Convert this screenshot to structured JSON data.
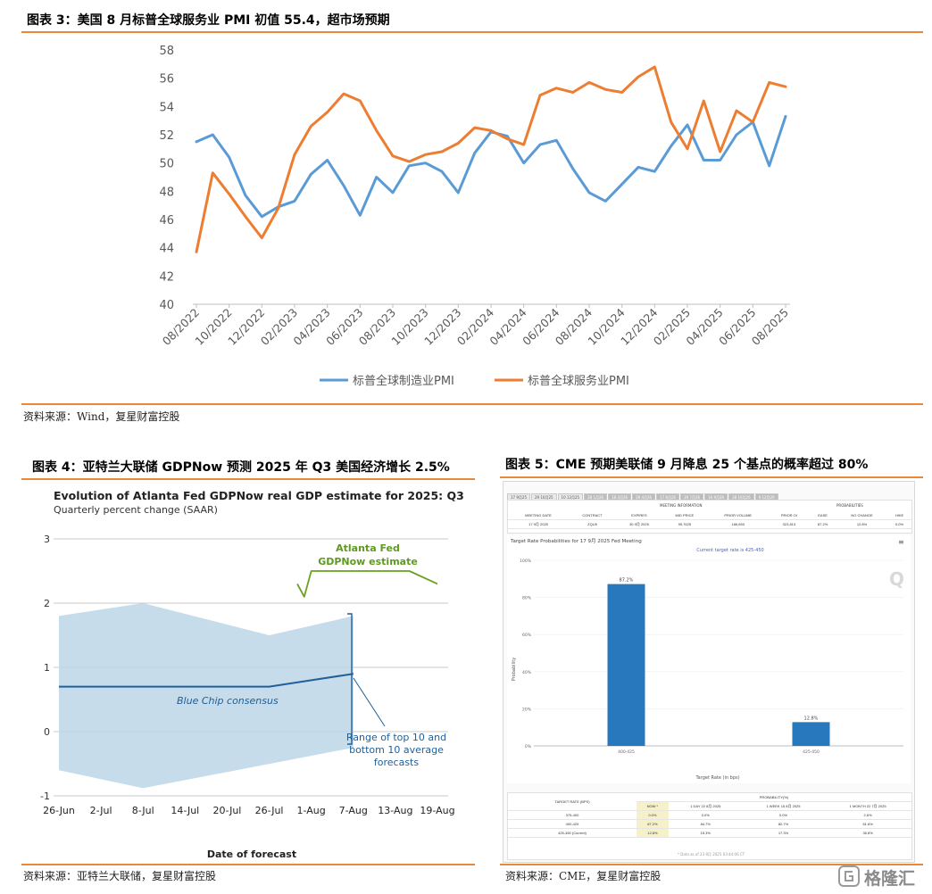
{
  "fig3": {
    "title": "图表 3：美国 8 月标普全球服务业 PMI 初值 55.4，超市场预期",
    "source": "资料来源：Wind，复星财富控股"
  },
  "fig4": {
    "title": "图表 4：亚特兰大联储 GDPNow 预测 2025 年 Q3 美国经济增长 2.5%",
    "source": "资料来源：亚特兰大联储，复星财富控股",
    "chart_title": "Evolution of Atlanta Fed GDPNow real GDP estimate for 2025: Q3",
    "chart_subtitle": "Quarterly percent change (SAAR)",
    "annotation_gdpnow_1": "Atlanta Fed",
    "annotation_gdpnow_2": "GDPNow estimate",
    "annotation_bluechip": "Blue Chip consensus",
    "annotation_range_1": "Range of top 10 and",
    "annotation_range_2": "bottom 10 average",
    "annotation_range_3": "forecasts",
    "xlabel": "Date of forecast"
  },
  "fig5": {
    "title": "图表 5：CME 预期美联储 9 月降息 25 个基点的概率超过 80%",
    "source": "资料来源：CME，复星财富控股",
    "tabs": [
      "17 9月25",
      "29 10月25",
      "10 12月25",
      "28 1月26",
      "18 3月26",
      "29 4月26",
      "17 6月26",
      "29 7月26",
      "16 9月26",
      "28 10月26",
      "9 12月26"
    ],
    "info_headers": {
      "meeting_info": "MEETING INFORMATION",
      "probabilities": "PROBABILITIES"
    },
    "info_cols": [
      "MEETING DATE",
      "CONTRACT",
      "EXPIRES",
      "MID PRICE",
      "PRIOR VOLUME",
      "PRIOR OI",
      "EASE",
      "NO CHANGE",
      "HIKE"
    ],
    "info_row": [
      "17 9月 2025",
      "ZQU5",
      "30 9月 2025",
      "95.7625",
      "166,650",
      "323,813",
      "87.2%",
      "12.8%",
      "0.0%"
    ],
    "plot_title": "Target Rate Probabilities for 17 9月 2025 Fed Meeting",
    "plot_subtitle": "Current target rate is 425-450",
    "ylabel": "Probability",
    "xlabel": "Target Rate (in bps)",
    "table_col1": "TARGET RATE (BPS)",
    "table_prob": "PROBABILITY(%)",
    "table_cols": [
      "NOW *",
      "1 DAY 22 8月 2025",
      "1 WEEK 15 8月 2025",
      "1 MONTH 22 7月 2025"
    ],
    "table_rows": [
      [
        "375-400",
        "0.0%",
        "0.0%",
        "0.0%",
        "2.6%"
      ],
      [
        "400-425",
        "87.2%",
        "84.7%",
        "82.7%",
        "61.6%"
      ],
      [
        "425-450 (Current)",
        "12.8%",
        "15.3%",
        "17.3%",
        "35.8%"
      ]
    ],
    "table_note": "* Data as of 23 8月 2025 03:44:06 CT",
    "watermark": "格隆汇"
  },
  "chart_data": [
    {
      "type": "line",
      "x": [
        "08/2022",
        "09/2022",
        "10/2022",
        "11/2022",
        "12/2022",
        "01/2023",
        "02/2023",
        "03/2023",
        "04/2023",
        "05/2023",
        "06/2023",
        "07/2023",
        "08/2023",
        "09/2023",
        "10/2023",
        "11/2023",
        "12/2023",
        "01/2024",
        "02/2024",
        "03/2024",
        "04/2024",
        "05/2024",
        "06/2024",
        "07/2024",
        "08/2024",
        "09/2024",
        "10/2024",
        "11/2024",
        "12/2024",
        "01/2025",
        "02/2025",
        "03/2025",
        "04/2025",
        "05/2025",
        "06/2025",
        "07/2025",
        "08/2025"
      ],
      "xticks": [
        "08/2022",
        "10/2022",
        "12/2022",
        "02/2023",
        "04/2023",
        "06/2023",
        "08/2023",
        "10/2023",
        "12/2023",
        "02/2024",
        "04/2024",
        "06/2024",
        "08/2024",
        "10/2024",
        "12/2024",
        "02/2025",
        "04/2025",
        "06/2025",
        "08/2025"
      ],
      "series": [
        {
          "name": "标普全球制造业PMI",
          "color": "#5b9bd5",
          "values": [
            51.5,
            52.0,
            50.4,
            47.7,
            46.2,
            46.9,
            47.3,
            49.2,
            50.2,
            48.4,
            46.3,
            49.0,
            47.9,
            49.8,
            50.0,
            49.4,
            47.9,
            50.7,
            52.2,
            51.9,
            50.0,
            51.3,
            51.6,
            49.6,
            47.9,
            47.3,
            48.5,
            49.7,
            49.4,
            51.2,
            52.7,
            50.2,
            50.2,
            52.0,
            52.9,
            49.8,
            53.3
          ]
        },
        {
          "name": "标普全球服务业PMI",
          "color": "#ed7d31",
          "values": [
            43.7,
            49.3,
            47.8,
            46.2,
            44.7,
            46.8,
            50.6,
            52.6,
            53.6,
            54.9,
            54.4,
            52.3,
            50.5,
            50.1,
            50.6,
            50.8,
            51.4,
            52.5,
            52.3,
            51.7,
            51.3,
            54.8,
            55.3,
            55.0,
            55.7,
            55.2,
            55.0,
            56.1,
            56.8,
            52.9,
            51.0,
            54.4,
            50.8,
            53.7,
            52.9,
            55.7,
            55.4
          ]
        }
      ],
      "ylim": [
        40,
        58
      ],
      "yticks": [
        40,
        42,
        44,
        46,
        48,
        50,
        52,
        54,
        56,
        58
      ],
      "grid": false,
      "legend": "bottom"
    },
    {
      "type": "line",
      "title": "Evolution of Atlanta Fed GDPNow real GDP estimate for 2025: Q3",
      "subtitle": "Quarterly percent change (SAAR)",
      "xlabel": "Date of forecast",
      "ylabel": "",
      "xticks": [
        "26-Jun",
        "2-Jul",
        "8-Jul",
        "14-Jul",
        "20-Jul",
        "26-Jul",
        "1-Aug",
        "7-Aug",
        "13-Aug",
        "19-Aug"
      ],
      "ylim": [
        -1,
        3
      ],
      "yticks": [
        -1,
        0,
        1,
        2,
        3
      ],
      "grid": true,
      "series": [
        {
          "name": "Blue Chip consensus",
          "color": "#1f5f9a",
          "points": [
            [
              "26-Jun",
              0.7
            ],
            [
              "26-Jul",
              0.7
            ],
            [
              "7-Aug",
              0.9
            ]
          ]
        },
        {
          "name": "Atlanta Fed GDPNow estimate",
          "color": "#6aa121",
          "points": [
            [
              "30-Jul",
              2.3
            ],
            [
              "31-Jul",
              2.1
            ],
            [
              "1-Aug",
              2.5
            ],
            [
              "15-Aug",
              2.5
            ],
            [
              "19-Aug",
              2.3
            ]
          ]
        }
      ],
      "band": {
        "name": "Range of top 10 and bottom 10 average forecasts",
        "color": "#bcd6e6",
        "upper": [
          [
            "26-Jun",
            1.8
          ],
          [
            "8-Jul",
            2.0
          ],
          [
            "26-Jul",
            1.5
          ],
          [
            "7-Aug",
            1.8
          ]
        ],
        "lower": [
          [
            "26-Jun",
            -0.6
          ],
          [
            "8-Jul",
            -0.88
          ],
          [
            "7-Aug",
            -0.25
          ]
        ]
      }
    },
    {
      "type": "bar",
      "title": "Target Rate Probabilities for 17 9月 2025 Fed Meeting",
      "subtitle": "Current target rate is 425-450",
      "categories": [
        "400-425",
        "425-450"
      ],
      "values": [
        87.2,
        12.8
      ],
      "ylabel": "Probability",
      "xlabel": "Target Rate (in bps)",
      "ylim": [
        0,
        100
      ],
      "yticks": [
        "0%",
        "20%",
        "40%",
        "60%",
        "80%",
        "100%"
      ],
      "color": "#2878bd"
    }
  ]
}
